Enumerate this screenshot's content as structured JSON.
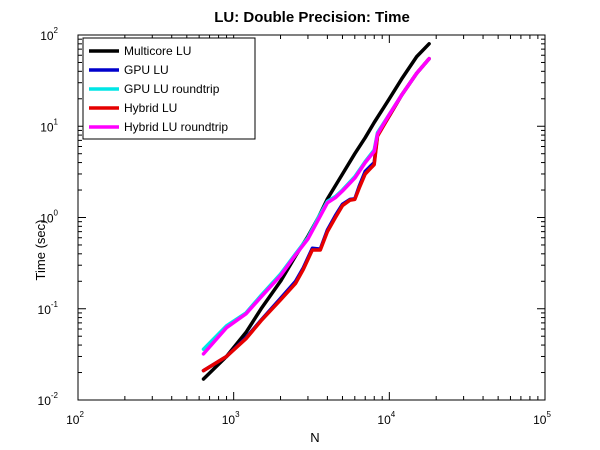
{
  "chart_data": {
    "type": "line",
    "title": "LU: Double Precision:  Time",
    "xlabel": "N",
    "ylabel": "Time (sec)",
    "xscale": "log",
    "yscale": "log",
    "xlim": [
      100,
      100000
    ],
    "ylim": [
      0.01,
      100
    ],
    "grid": false,
    "legend_position": "top-left",
    "x_ticks": [
      {
        "base": "10",
        "exp": "2",
        "value": 100
      },
      {
        "base": "10",
        "exp": "3",
        "value": 1000
      },
      {
        "base": "10",
        "exp": "4",
        "value": 10000
      },
      {
        "base": "10",
        "exp": "5",
        "value": 100000
      }
    ],
    "y_ticks": [
      {
        "base": "10",
        "exp": "-2",
        "value": 0.01
      },
      {
        "base": "10",
        "exp": "-1",
        "value": 0.1
      },
      {
        "base": "10",
        "exp": "0",
        "value": 1
      },
      {
        "base": "10",
        "exp": "1",
        "value": 10
      },
      {
        "base": "10",
        "exp": "2",
        "value": 100
      }
    ],
    "series": [
      {
        "name": "Multicore LU",
        "color": "#000000",
        "x": [
          640,
          900,
          1200,
          1500,
          2000,
          2500,
          3000,
          3500,
          4000,
          5000,
          6000,
          7000,
          8000,
          10000,
          12000,
          15000,
          18000
        ],
        "y": [
          0.017,
          0.03,
          0.055,
          0.1,
          0.2,
          0.38,
          0.62,
          1.0,
          1.6,
          3.0,
          5.0,
          7.5,
          11,
          20,
          33,
          58,
          80
        ]
      },
      {
        "name": "GPU LU",
        "color": "#0000cc",
        "x": [
          640,
          900,
          1200,
          1500,
          2000,
          2500,
          2800,
          3200,
          3600,
          4000,
          4500,
          5000,
          5600,
          6000,
          6400,
          7000,
          7500,
          8000,
          8400,
          10000,
          12000,
          15000,
          18000
        ],
        "y": [
          0.021,
          0.03,
          0.048,
          0.075,
          0.13,
          0.2,
          0.28,
          0.46,
          0.45,
          0.73,
          1.05,
          1.4,
          1.58,
          1.6,
          2.2,
          3.2,
          3.6,
          4.0,
          8.0,
          13,
          22,
          38,
          55
        ]
      },
      {
        "name": "GPU LU roundtrip",
        "color": "#00e6e6",
        "x": [
          640,
          900,
          1200,
          1500,
          2000,
          2500,
          3000,
          3500,
          4000,
          4500,
          5000,
          6000,
          7000,
          8000,
          8400,
          10000,
          12000,
          15000,
          18000
        ],
        "y": [
          0.036,
          0.065,
          0.09,
          0.14,
          0.24,
          0.4,
          0.6,
          1.0,
          1.5,
          1.7,
          2.0,
          2.8,
          4.1,
          5.5,
          8.5,
          13.5,
          22,
          38,
          55
        ]
      },
      {
        "name": "Hybrid LU",
        "color": "#e60000",
        "x": [
          640,
          900,
          1200,
          1500,
          2000,
          2500,
          2800,
          3200,
          3600,
          4000,
          4500,
          5000,
          5600,
          6000,
          6400,
          7000,
          7500,
          8000,
          8400,
          10000,
          12000,
          15000,
          18000
        ],
        "y": [
          0.021,
          0.03,
          0.047,
          0.074,
          0.125,
          0.19,
          0.27,
          0.44,
          0.44,
          0.7,
          1.0,
          1.35,
          1.55,
          1.58,
          2.1,
          3.0,
          3.4,
          3.8,
          7.8,
          13,
          22,
          38,
          55
        ]
      },
      {
        "name": "Hybrid LU roundtrip",
        "color": "#ff00ff",
        "x": [
          640,
          900,
          1200,
          1500,
          2000,
          2500,
          3000,
          3500,
          4000,
          4500,
          5000,
          6000,
          7000,
          8000,
          8400,
          10000,
          12000,
          15000,
          18000
        ],
        "y": [
          0.032,
          0.062,
          0.088,
          0.135,
          0.23,
          0.39,
          0.58,
          0.95,
          1.45,
          1.65,
          1.95,
          2.7,
          4.0,
          5.3,
          8.2,
          13.5,
          22,
          38,
          55
        ]
      }
    ]
  }
}
